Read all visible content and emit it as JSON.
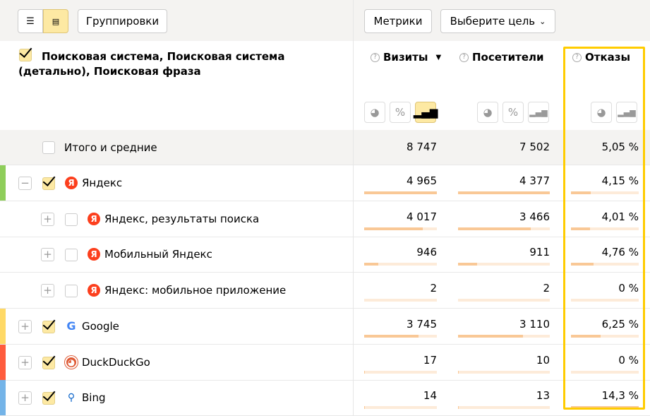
{
  "toolbar": {
    "view_list_icon": "list-icon",
    "view_tree_icon": "tree-icon",
    "groupings_label": "Группировки",
    "metrics_label": "Метрики",
    "goal_label": "Выберите цель"
  },
  "header": {
    "dimensions_title": "Поисковая система, Поисковая система (детально), Поисковая фраза",
    "columns": [
      {
        "label": "Визиты",
        "sort": "▼"
      },
      {
        "label": "Посетители"
      },
      {
        "label": "Отказы"
      }
    ]
  },
  "totals": {
    "label": "Итого и средние",
    "visits": "8 747",
    "visitors": "7 502",
    "bounce": "5,05 %"
  },
  "rows": [
    {
      "label": "Яндекс",
      "level": 0,
      "expanded": true,
      "checked": true,
      "icon": "yandex-icon",
      "strip": "#8fce5b",
      "visits": "4 965",
      "visitors": "4 377",
      "bounce": "4,15 %",
      "vb": 1,
      "pb": 1,
      "bb": 0.29
    },
    {
      "label": "Яндекс, результаты поиска",
      "level": 1,
      "expanded": false,
      "checked": false,
      "icon": "yandex-icon",
      "visits": "4 017",
      "visitors": "3 466",
      "bounce": "4,01 %",
      "vb": 0.81,
      "pb": 0.79,
      "bb": 0.28
    },
    {
      "label": "Мобильный Яндекс",
      "level": 1,
      "expanded": false,
      "checked": false,
      "icon": "yandex-icon",
      "visits": "946",
      "visitors": "911",
      "bounce": "4,76 %",
      "vb": 0.19,
      "pb": 0.21,
      "bb": 0.33
    },
    {
      "label": "Яндекс: мобильное приложение",
      "level": 1,
      "expanded": false,
      "checked": false,
      "icon": "yandex-icon",
      "visits": "2",
      "visitors": "2",
      "bounce": "0 %",
      "vb": 0,
      "pb": 0,
      "bb": 0
    },
    {
      "label": "Google",
      "level": 0,
      "expanded": false,
      "checked": true,
      "icon": "google-icon",
      "strip": "#ffd966",
      "visits": "3 745",
      "visitors": "3 110",
      "bounce": "6,25 %",
      "vb": 0.75,
      "pb": 0.71,
      "bb": 0.44
    },
    {
      "label": "DuckDuckGo",
      "level": 0,
      "expanded": false,
      "checked": true,
      "icon": "duckduckgo-icon",
      "strip": "#ff5c3d",
      "visits": "17",
      "visitors": "10",
      "bounce": "0 %",
      "vb": 0.004,
      "pb": 0.002,
      "bb": 0
    },
    {
      "label": "Bing",
      "level": 0,
      "expanded": false,
      "checked": true,
      "icon": "bing-icon",
      "strip": "#74b4e8",
      "visits": "14",
      "visitors": "13",
      "bounce": "14,3 %",
      "vb": 0.003,
      "pb": 0.003,
      "bb": 1
    }
  ],
  "colors": {
    "highlight": "#ffcc00",
    "bar": "#f9c896",
    "active": "#fde9a3"
  }
}
